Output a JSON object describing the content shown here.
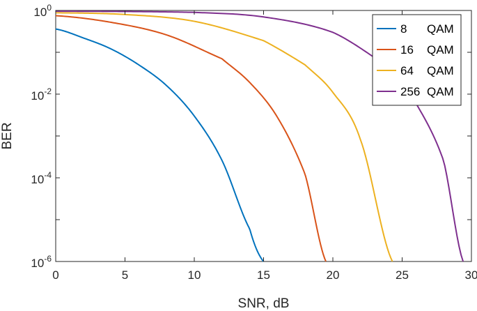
{
  "chart_data": {
    "type": "line",
    "title": "",
    "xlabel": "SNR, dB",
    "ylabel": "BER",
    "xlim": [
      0,
      30
    ],
    "ylim": [
      1e-06,
      1
    ],
    "yscale": "log",
    "grid": false,
    "legend_position": "top-right",
    "x_ticks": [
      "0",
      "5",
      "10",
      "15",
      "20",
      "25",
      "30"
    ],
    "y_ticks": [
      {
        "base": "10",
        "exp": "0",
        "value": 1
      },
      {
        "base": "10",
        "exp": "-2",
        "value": 0.01
      },
      {
        "base": "10",
        "exp": "-4",
        "value": 0.0001
      },
      {
        "base": "10",
        "exp": "-6",
        "value": 1e-06
      }
    ],
    "series": [
      {
        "label_num": "8",
        "label_mod": "QAM",
        "M": 8,
        "color": "#0072BD",
        "x": [
          0,
          2,
          4,
          6,
          8,
          10,
          12,
          14,
          15
        ],
        "y": [
          0.36,
          0.22,
          0.12,
          0.05,
          0.016,
          0.003,
          0.00026,
          6e-06,
          1e-06
        ]
      },
      {
        "label_num": "16",
        "label_mod": "QAM",
        "M": 16,
        "color": "#D95319",
        "x": [
          0,
          4,
          8,
          12,
          14,
          16,
          18,
          19.5
        ],
        "y": [
          0.75,
          0.52,
          0.26,
          0.07,
          0.019,
          0.0028,
          0.00012,
          1e-06
        ]
      },
      {
        "label_num": "64",
        "label_mod": "QAM",
        "M": 64,
        "color": "#EDB120",
        "x": [
          0,
          5,
          10,
          15,
          18,
          20,
          22,
          24.3
        ],
        "y": [
          0.88,
          0.8,
          0.55,
          0.19,
          0.05,
          0.011,
          0.0008,
          1e-06
        ]
      },
      {
        "label_num": "256",
        "label_mod": "QAM",
        "M": 256,
        "color": "#7E2F8E",
        "x": [
          0,
          10,
          15,
          20,
          24,
          26,
          28,
          29.4
        ],
        "y": [
          0.96,
          0.9,
          0.7,
          0.3,
          0.045,
          0.006,
          0.00025,
          1e-06
        ]
      }
    ]
  }
}
